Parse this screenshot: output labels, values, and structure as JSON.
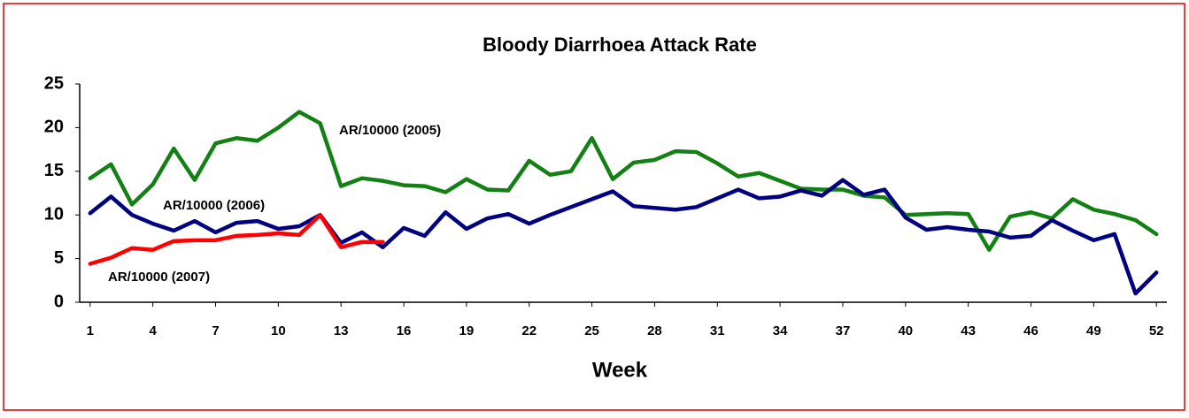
{
  "chart_data": {
    "type": "line",
    "title": "Bloody Diarrhoea Attack Rate",
    "x_label": "Week",
    "x": [
      1,
      2,
      3,
      4,
      5,
      6,
      7,
      8,
      9,
      10,
      11,
      12,
      13,
      14,
      15,
      16,
      17,
      18,
      19,
      20,
      21,
      22,
      23,
      24,
      25,
      26,
      27,
      28,
      29,
      30,
      31,
      32,
      33,
      34,
      35,
      36,
      37,
      38,
      39,
      40,
      41,
      42,
      43,
      44,
      45,
      46,
      47,
      48,
      49,
      50,
      51,
      52
    ],
    "xlim": [
      0.5,
      52.5
    ],
    "xticks": [
      1,
      4,
      7,
      10,
      13,
      16,
      19,
      22,
      25,
      28,
      31,
      34,
      37,
      40,
      43,
      46,
      49,
      52
    ],
    "ylim": [
      0,
      25
    ],
    "yticks": [
      0,
      5,
      10,
      15,
      20,
      25
    ],
    "grid": false,
    "series": [
      {
        "name": "AR/10000 (2005)",
        "color": "#138013",
        "values": [
          14.2,
          15.8,
          11.2,
          13.5,
          17.6,
          14,
          18.2,
          18.8,
          18.5,
          20,
          21.8,
          20.5,
          13.3,
          14.2,
          13.9,
          13.4,
          13.3,
          12.6,
          14.1,
          12.9,
          12.8,
          16.2,
          14.6,
          15,
          18.8,
          14.1,
          16,
          16.3,
          17.3,
          17.2,
          15.9,
          14.4,
          14.8,
          13.9,
          13,
          12.9,
          12.9,
          12.2,
          12,
          10,
          10.1,
          10.2,
          10.1,
          6,
          9.8,
          10.3,
          9.6,
          11.8,
          10.6,
          10.1,
          9.4,
          7.8
        ]
      },
      {
        "name": "AR/10000 (2006)",
        "color": "#000080",
        "values": [
          10.2,
          12.1,
          10,
          9,
          8.2,
          9.3,
          8,
          9.1,
          9.3,
          8.4,
          8.7,
          10,
          6.8,
          8,
          6.3,
          8.5,
          7.6,
          10.3,
          8.4,
          9.6,
          10.1,
          9,
          10,
          10.9,
          11.8,
          12.7,
          11,
          10.8,
          10.6,
          10.9,
          11.9,
          12.9,
          11.9,
          12.1,
          12.8,
          12.2,
          14,
          12.3,
          12.9,
          9.7,
          8.3,
          8.6,
          8.3,
          8.1,
          7.4,
          7.6,
          9.4,
          8.2,
          7.1,
          7.8,
          1,
          3.4
        ]
      },
      {
        "name": "AR/10000 (2007)",
        "color": "#ff0000",
        "values": [
          4.4,
          5.1,
          6.2,
          6,
          7,
          7.1,
          7.1,
          7.6,
          7.7,
          7.9,
          7.7,
          10,
          6.3,
          6.9,
          6.9,
          null,
          null,
          null,
          null,
          null,
          null,
          null,
          null,
          null,
          null,
          null,
          null,
          null,
          null,
          null,
          null,
          null,
          null,
          null,
          null,
          null,
          null,
          null,
          null,
          null,
          null,
          null,
          null,
          null,
          null,
          null,
          null,
          null,
          null,
          null,
          null,
          null
        ]
      }
    ]
  }
}
